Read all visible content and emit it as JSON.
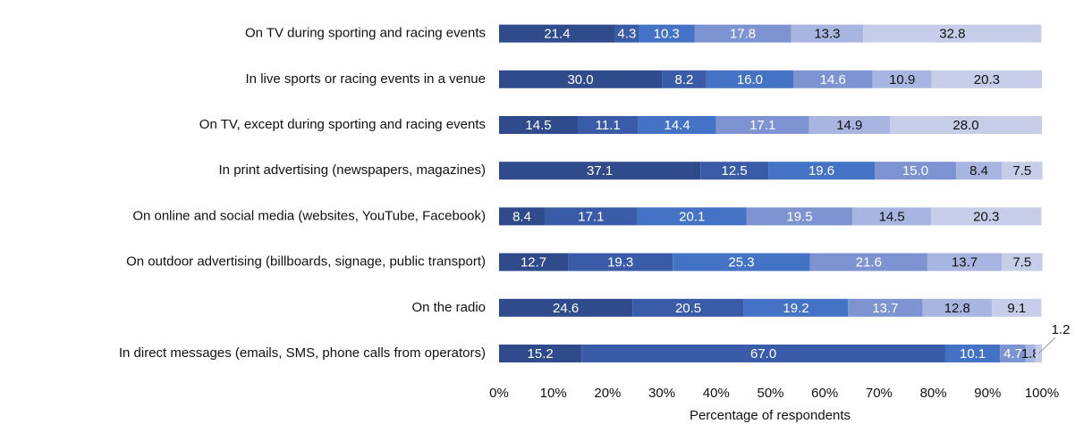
{
  "chart_data": {
    "type": "bar",
    "orientation": "horizontal",
    "stacked": true,
    "x_label": "Percentage of respondents",
    "categories": [
      "On TV during sporting and racing events",
      "In live sports or racing events in a venue",
      "On TV, except during sporting and racing events",
      "In print advertising (newspapers, magazines)",
      "On online and social media (websites, YouTube, Facebook)",
      "On outdoor advertising (billboards, signage, public transport)",
      "On the radio",
      "In direct messages (emails, SMS, phone calls from operators)"
    ],
    "series": [
      {
        "color": "#2f4b8c",
        "label_color": "#ffffff",
        "values": [
          21.4,
          30.0,
          14.5,
          37.1,
          8.4,
          12.7,
          24.6,
          15.2
        ],
        "value_labels": [
          "21.4",
          "30.0",
          "14.5",
          "37.1",
          "8.4",
          "12.7",
          "24.6",
          "15.2"
        ]
      },
      {
        "color": "#3a5ca8",
        "label_color": "#ffffff",
        "values": [
          4.3,
          8.2,
          11.1,
          12.5,
          17.1,
          19.3,
          20.5,
          67.0
        ],
        "value_labels": [
          "4.3",
          "8.2",
          "11.1",
          "12.5",
          "17.1",
          "19.3",
          "20.5",
          "67.0"
        ]
      },
      {
        "color": "#4472c4",
        "label_color": "#ffffff",
        "values": [
          10.3,
          16.0,
          14.4,
          19.6,
          20.1,
          25.3,
          19.2,
          10.1
        ],
        "value_labels": [
          "10.3",
          "16.0",
          "14.4",
          "19.6",
          "20.1",
          "25.3",
          "19.2",
          "10.1"
        ]
      },
      {
        "color": "#7d93d2",
        "label_color": "#ffffff",
        "values": [
          17.8,
          14.6,
          17.1,
          15.0,
          19.5,
          21.6,
          13.7,
          4.7
        ],
        "value_labels": [
          "17.8",
          "14.6",
          "17.1",
          "15.0",
          "19.5",
          "21.6",
          "13.7",
          "4.7"
        ]
      },
      {
        "color": "#a8b5e0",
        "label_color": "#111111",
        "values": [
          13.3,
          10.9,
          14.9,
          8.4,
          14.5,
          13.7,
          12.8,
          1.8
        ],
        "value_labels": [
          "13.3",
          "10.9",
          "14.9",
          "8.4",
          "14.5",
          "13.7",
          "12.8",
          "1.8"
        ]
      },
      {
        "color": "#c6cde9",
        "label_color": "#111111",
        "values": [
          32.8,
          20.3,
          28.0,
          7.5,
          20.3,
          7.5,
          9.1,
          1.2
        ],
        "value_labels": [
          "32.8",
          "20.3",
          "28.0",
          "7.5",
          "20.3",
          "7.5",
          "9.1",
          "1.2"
        ]
      }
    ],
    "xlim": [
      0,
      100
    ],
    "xticks": [
      {
        "value": 0,
        "label": "0%"
      },
      {
        "value": 10,
        "label": "10%"
      },
      {
        "value": 20,
        "label": "20%"
      },
      {
        "value": 30,
        "label": "30%"
      },
      {
        "value": 40,
        "label": "40%"
      },
      {
        "value": 50,
        "label": "50%"
      },
      {
        "value": 60,
        "label": "60%"
      },
      {
        "value": 70,
        "label": "70%"
      },
      {
        "value": 80,
        "label": "80%"
      },
      {
        "value": 90,
        "label": "90%"
      },
      {
        "value": 100,
        "label": "100%"
      }
    ],
    "grid": false
  }
}
